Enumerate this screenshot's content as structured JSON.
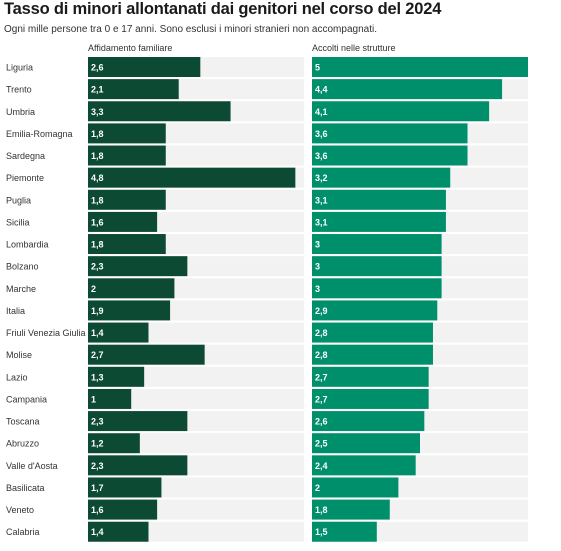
{
  "title": "Tasso di minori allontanati dai genitori nel corso del 2024",
  "subtitle": "Ogni mille persone tra 0 e 17 anni. Sono esclusi i minori stranieri non accompagnati.",
  "colors": {
    "panel1_bar": "#0d4a34",
    "panel2_bar": "#008f6b",
    "track": "#f2f2f2",
    "label_text": "#ffffff"
  },
  "chart_data": {
    "type": "bar",
    "orientation": "horizontal",
    "categories": [
      "Liguria",
      "Trento",
      "Umbria",
      "Emilia-Romagna",
      "Sardegna",
      "Piemonte",
      "Puglia",
      "Sicilia",
      "Lombardia",
      "Bolzano",
      "Marche",
      "Italia",
      "Friuli Venezia Giulia",
      "Molise",
      "Lazio",
      "Campania",
      "Toscana",
      "Abruzzo",
      "Valle d'Aosta",
      "Basilicata",
      "Veneto",
      "Calabria"
    ],
    "series": [
      {
        "name": "Affidamento familiare",
        "values": [
          2.6,
          2.1,
          3.3,
          1.8,
          1.8,
          4.8,
          1.8,
          1.6,
          1.8,
          2.3,
          2,
          1.9,
          1.4,
          2.7,
          1.3,
          1,
          2.3,
          1.2,
          2.3,
          1.7,
          1.6,
          1.4
        ],
        "labels": [
          "2,6",
          "2,1",
          "3,3",
          "1,8",
          "1,8",
          "4,8",
          "1,8",
          "1,6",
          "1,8",
          "2,3",
          "2",
          "1,9",
          "1,4",
          "2,7",
          "1,3",
          "1",
          "2,3",
          "1,2",
          "2,3",
          "1,7",
          "1,6",
          "1,4"
        ],
        "max": 5
      },
      {
        "name": "Accolti nelle strutture",
        "values": [
          5,
          4.4,
          4.1,
          3.6,
          3.6,
          3.2,
          3.1,
          3.1,
          3,
          3,
          3,
          2.9,
          2.8,
          2.8,
          2.7,
          2.7,
          2.6,
          2.5,
          2.4,
          2,
          1.8,
          1.5
        ],
        "labels": [
          "5",
          "4,4",
          "4,1",
          "3,6",
          "3,6",
          "3,2",
          "3,1",
          "3,1",
          "3",
          "3",
          "3",
          "2,9",
          "2,8",
          "2,8",
          "2,7",
          "2,7",
          "2,6",
          "2,5",
          "2,4",
          "2",
          "1,8",
          "1,5"
        ],
        "max": 5
      }
    ]
  }
}
